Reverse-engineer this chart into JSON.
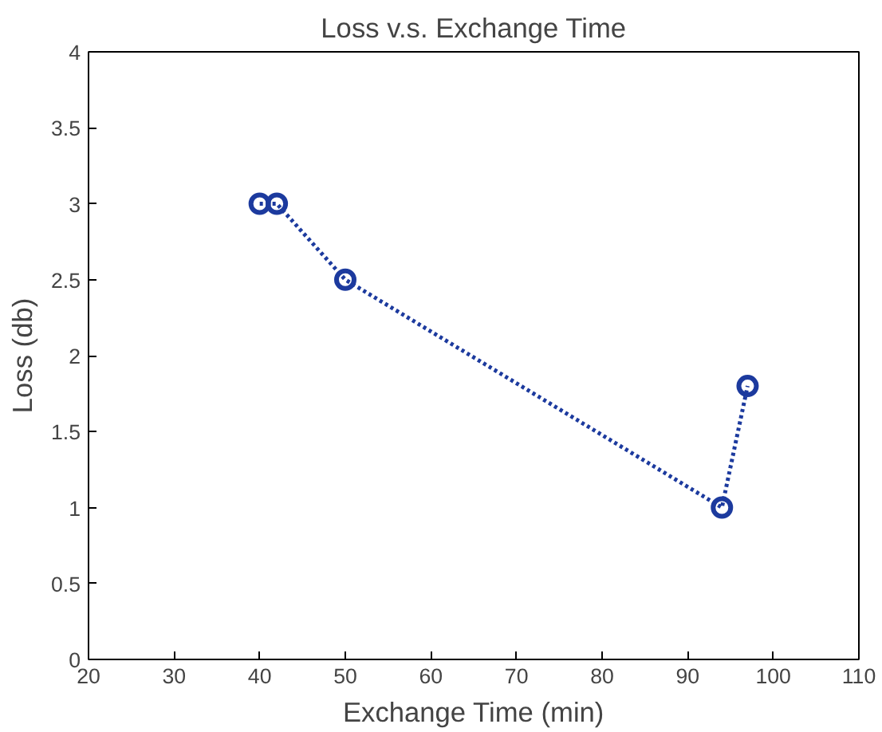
{
  "chart_data": {
    "type": "line",
    "title": "Loss v.s. Exchange Time",
    "xlabel": "Exchange Time (min)",
    "ylabel": "Loss (db)",
    "x": [
      40,
      42,
      50,
      94,
      97
    ],
    "series": [
      {
        "color": "#1c3a9e",
        "values": [
          3,
          3,
          2.5,
          1,
          1.8
        ]
      }
    ],
    "xlim": [
      20,
      110
    ],
    "xticks": [
      20,
      30,
      40,
      50,
      60,
      70,
      80,
      90,
      100,
      110
    ],
    "ylim": [
      0,
      4
    ],
    "yticks": [
      0,
      0.5,
      1,
      1.5,
      2,
      2.5,
      3,
      3.5,
      4
    ],
    "grid": false,
    "marker": "circle",
    "line_style": "dotted"
  }
}
